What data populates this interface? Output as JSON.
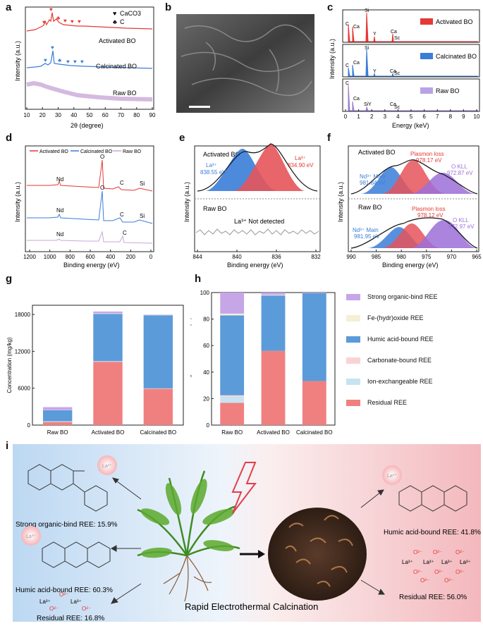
{
  "panels": {
    "a": {
      "label": "a",
      "ylabel": "Intensity (a.u.)",
      "xlabel": "2θ (degree)",
      "xticks": [
        "10",
        "20",
        "30",
        "40",
        "50",
        "60",
        "70",
        "80",
        "90"
      ],
      "legend": {
        "sym1": "♥",
        "t1": "CaCO3",
        "sym2": "♣",
        "t2": "C"
      },
      "series": [
        "Activated BO",
        "Calcinated BO",
        "Raw BO"
      ]
    },
    "b": {
      "label": "b"
    },
    "c": {
      "label": "c",
      "ylabel": "Intensity (a.u.)",
      "xlabel": "Energy (keV)",
      "xticks": [
        "0",
        "1",
        "2",
        "3",
        "4",
        "5",
        "6",
        "7",
        "8",
        "9",
        "10"
      ],
      "legends": [
        "Activated BO",
        "Calcinated BO",
        "Raw BO"
      ],
      "peaks1": [
        "C",
        "Ca",
        "Si",
        "Y",
        "Ca",
        "Sc"
      ],
      "peaks2": [
        "C",
        "Ca",
        "Si",
        "Y",
        "Ca",
        "Sc"
      ],
      "peaks3": [
        "C",
        "Ca",
        "Si",
        "Y",
        "Ca",
        "Sc"
      ]
    },
    "d": {
      "label": "d",
      "ylabel": "Intensity (a.u.)",
      "xlabel": "Binding energy (eV)",
      "xticks": [
        "1200",
        "1000",
        "800",
        "600",
        "400",
        "200",
        "0"
      ],
      "legend": [
        "Activated BO",
        "Calcinated BO",
        "Raw BO"
      ],
      "peaks": [
        "Nd",
        "O",
        "C",
        "Si"
      ]
    },
    "e": {
      "label": "e",
      "ylabel": "Intensity (a.u.)",
      "xlabel": "Binding energy (eV)",
      "xticks": [
        "844",
        "840",
        "836",
        "832"
      ],
      "top_title": "Activated BO",
      "la1": "La³⁺",
      "la1v": "838.55 eV",
      "la2": "La³⁺",
      "la2v": "834.90 eV",
      "bottom_title": "Raw BO",
      "nd": "La³⁺ Not detected"
    },
    "f": {
      "label": "f",
      "ylabel": "Intensity (a.u.)",
      "xlabel": "Binding energy (eV)",
      "xticks": [
        "990",
        "985",
        "980",
        "975",
        "970",
        "965"
      ],
      "top_title": "Activated BO",
      "pl1": "Plasmon loss",
      "pl1v": "978.17 eV",
      "ok1": "O KLL",
      "ok1v": "972.87 eV",
      "nd1": "Nd³⁺ Main",
      "nd1v": "981.84 eV",
      "bottom_title": "Raw BO",
      "pl2": "Plasmon loss",
      "pl2v": "978.12 eV",
      "ok2": "O KLL",
      "ok2v": "972.97 eV",
      "nd2": "Nd³⁺ Main",
      "nd2v": "981.95 eV"
    },
    "g": {
      "label": "g"
    },
    "h": {
      "label": "h"
    },
    "i": {
      "label": "i"
    }
  },
  "chart_data": [
    {
      "type": "bar",
      "id": "g",
      "stacked": true,
      "categories": [
        "Raw BO",
        "Activated BO",
        "Calcinated BO"
      ],
      "ylabel": "Concentration (mg/kg)",
      "yticks": [
        "0",
        "6000",
        "12000",
        "18000"
      ],
      "ylim": [
        0,
        19500
      ],
      "series": [
        {
          "name": "Residual REE",
          "color": "#f08080",
          "values": [
            500,
            10300,
            5900
          ]
        },
        {
          "name": "Ion-exchangeable REE",
          "color": "#c7e3f2",
          "values": [
            80,
            60,
            40
          ]
        },
        {
          "name": "Carbonate-bound REE",
          "color": "#f8d3d3",
          "values": [
            40,
            40,
            30
          ]
        },
        {
          "name": "Humic acid-bound REE",
          "color": "#5b9bd9",
          "values": [
            1800,
            7700,
            11900
          ]
        },
        {
          "name": "Fe-(hydr)oxide REE",
          "color": "#f5efd6",
          "values": [
            30,
            80,
            30
          ]
        },
        {
          "name": "Strong organic-bind REE",
          "color": "#c7a6e8",
          "values": [
            470,
            300,
            60
          ]
        }
      ]
    },
    {
      "type": "bar",
      "id": "h",
      "stacked": true,
      "categories": [
        "Raw BO",
        "Activated BO",
        "Calcinated BO"
      ],
      "ylabel": "Percentage of six REE forms (%)",
      "yticks": [
        "0",
        "20",
        "40",
        "60",
        "80",
        "100"
      ],
      "ylim": [
        0,
        100
      ],
      "series": [
        {
          "name": "Residual REE",
          "color": "#f08080",
          "values": [
            16.8,
            56.0,
            33.2
          ]
        },
        {
          "name": "Ion-exchangeable REE",
          "color": "#c7e3f2",
          "values": [
            4.7,
            0,
            0
          ]
        },
        {
          "name": "Carbonate-bound REE",
          "color": "#f8d3d3",
          "values": [
            1.0,
            0,
            0
          ]
        },
        {
          "name": "Humic acid-bound REE",
          "color": "#5b9bd9",
          "values": [
            60.3,
            41.8,
            66.3
          ]
        },
        {
          "name": "Fe-(hydr)oxide REE",
          "color": "#f5efd6",
          "values": [
            1.3,
            0.5,
            0
          ]
        },
        {
          "name": "Strong organic-bind REE",
          "color": "#c7a6e8",
          "values": [
            15.9,
            1.7,
            0.5
          ]
        }
      ]
    }
  ],
  "legend_h": [
    "Strong organic-bind REE",
    "Fe-(hydr)oxide REE",
    "Humic acid-bound REE",
    "Carbonate-bound REE",
    "Ion-exchangeable REE",
    "Residual REE"
  ],
  "legend_colors": [
    "#c7a6e8",
    "#f5efd6",
    "#5b9bd9",
    "#f8d3d3",
    "#c7e3f2",
    "#f08080"
  ],
  "schematic": {
    "strong": "Strong organic-bind REE: 15.9%",
    "humic_left": "Humic acid-bound REE: 60.3%",
    "residual_left": "Residual REE: 16.8%",
    "center": "Rapid Electrothermal Calcination",
    "humic_right": "Humic acid-bound REE: 41.8%",
    "residual_right": "Residual REE: 56.0%",
    "la": "La³⁺",
    "o2": "O²⁻"
  }
}
